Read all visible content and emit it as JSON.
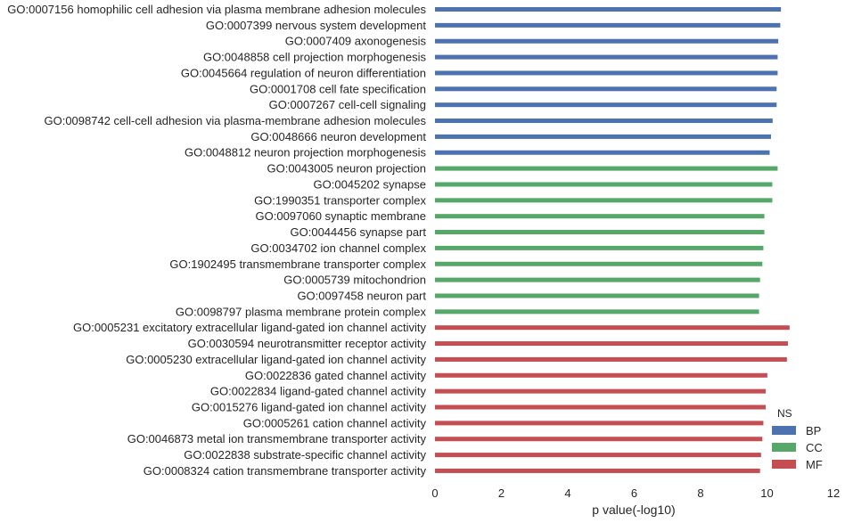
{
  "chart_data": {
    "type": "bar",
    "orientation": "horizontal",
    "xlabel": "p value(-log10)",
    "ylabel": "",
    "xlim": [
      0,
      12
    ],
    "xticks": [
      0,
      2,
      4,
      6,
      8,
      10,
      12
    ],
    "grid": false,
    "legend": {
      "title": "NS",
      "position": "bottom-right",
      "entries": [
        {
          "name": "BP",
          "color": "#4c72b0"
        },
        {
          "name": "CC",
          "color": "#55a868"
        },
        {
          "name": "MF",
          "color": "#c44e52"
        }
      ]
    },
    "bars": [
      {
        "label": "GO:0007156 homophilic cell adhesion via plasma membrane adhesion molecules",
        "value": 10.42,
        "group": "BP"
      },
      {
        "label": "GO:0007399 nervous system development",
        "value": 10.4,
        "group": "BP"
      },
      {
        "label": "GO:0007409 axonogenesis",
        "value": 10.34,
        "group": "BP"
      },
      {
        "label": "GO:0048858 cell projection morphogenesis",
        "value": 10.32,
        "group": "BP"
      },
      {
        "label": "GO:0045664 regulation of neuron differentiation",
        "value": 10.32,
        "group": "BP"
      },
      {
        "label": "GO:0001708 cell fate specification",
        "value": 10.29,
        "group": "BP"
      },
      {
        "label": "GO:0007267 cell-cell signaling",
        "value": 10.29,
        "group": "BP"
      },
      {
        "label": "GO:0098742 cell-cell adhesion via plasma-membrane adhesion molecules",
        "value": 10.17,
        "group": "BP"
      },
      {
        "label": "GO:0048666 neuron development",
        "value": 10.12,
        "group": "BP"
      },
      {
        "label": "GO:0048812 neuron projection morphogenesis",
        "value": 10.08,
        "group": "BP"
      },
      {
        "label": "GO:0043005 neuron projection",
        "value": 10.32,
        "group": "CC"
      },
      {
        "label": "GO:0045202 synapse",
        "value": 10.16,
        "group": "CC"
      },
      {
        "label": "GO:1990351 transporter complex",
        "value": 10.16,
        "group": "CC"
      },
      {
        "label": "GO:0097060 synaptic membrane",
        "value": 9.92,
        "group": "CC"
      },
      {
        "label": "GO:0044456 synapse part",
        "value": 9.92,
        "group": "CC"
      },
      {
        "label": "GO:0034702 ion channel complex",
        "value": 9.89,
        "group": "CC"
      },
      {
        "label": "GO:1902495 transmembrane transporter complex",
        "value": 9.86,
        "group": "CC"
      },
      {
        "label": "GO:0005739 mitochondrion",
        "value": 9.79,
        "group": "CC"
      },
      {
        "label": "GO:0097458 neuron part",
        "value": 9.76,
        "group": "CC"
      },
      {
        "label": "GO:0098797 plasma membrane protein complex",
        "value": 9.76,
        "group": "CC"
      },
      {
        "label": "GO:0005231 excitatory extracellular ligand-gated ion channel activity",
        "value": 10.68,
        "group": "MF"
      },
      {
        "label": "GO:0030594 neurotransmitter receptor activity",
        "value": 10.63,
        "group": "MF"
      },
      {
        "label": "GO:0005230 extracellular ligand-gated ion channel activity",
        "value": 10.6,
        "group": "MF"
      },
      {
        "label": "GO:0022836 gated channel activity",
        "value": 10.01,
        "group": "MF"
      },
      {
        "label": "GO:0022834 ligand-gated channel activity",
        "value": 9.96,
        "group": "MF"
      },
      {
        "label": "GO:0015276 ligand-gated ion channel activity",
        "value": 9.96,
        "group": "MF"
      },
      {
        "label": "GO:0005261 cation channel activity",
        "value": 9.89,
        "group": "MF"
      },
      {
        "label": "GO:0046873 metal ion transmembrane transporter activity",
        "value": 9.86,
        "group": "MF"
      },
      {
        "label": "GO:0022838 substrate-specific channel activity",
        "value": 9.82,
        "group": "MF"
      },
      {
        "label": "GO:0008324 cation transmembrane transporter activity",
        "value": 9.79,
        "group": "MF"
      }
    ]
  }
}
